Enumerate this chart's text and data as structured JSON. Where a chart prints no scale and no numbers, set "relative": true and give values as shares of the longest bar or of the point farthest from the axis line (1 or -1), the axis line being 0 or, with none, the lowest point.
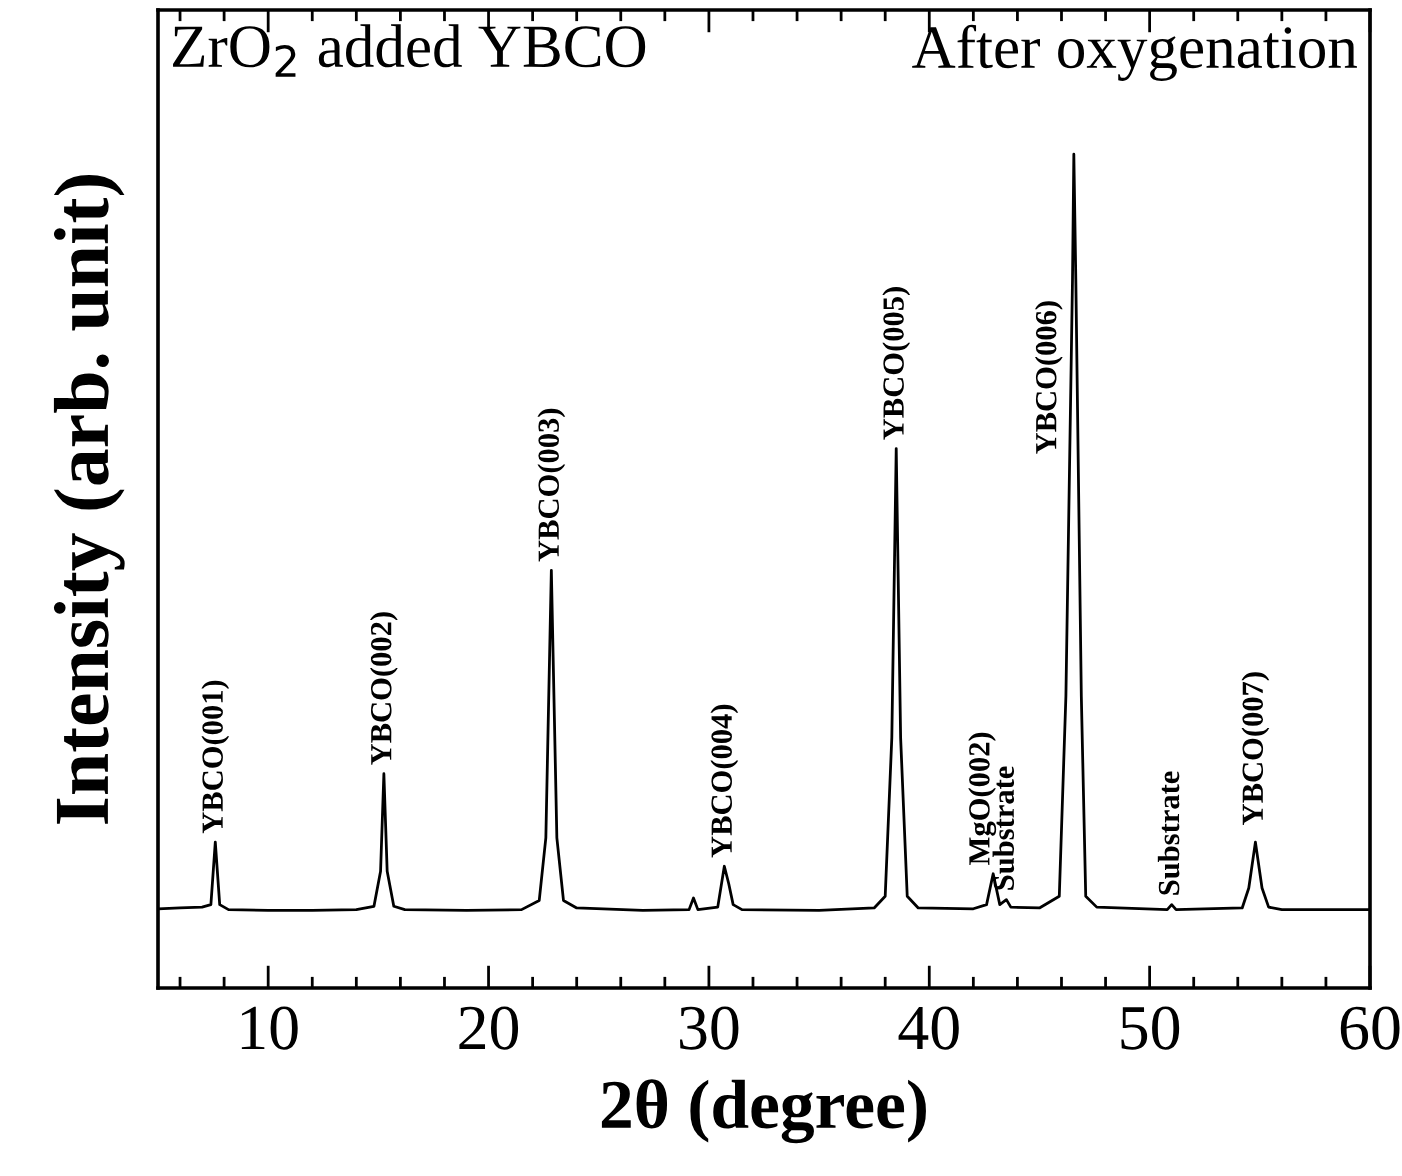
{
  "chart_data": {
    "type": "line",
    "relative": true,
    "xlabel": "2θ (degree)",
    "ylabel": "Intensity (arb. unit)",
    "xlim": [
      5,
      60
    ],
    "xticks": [
      10,
      20,
      30,
      40,
      50,
      60
    ],
    "tick_labels": "x",
    "grid": false,
    "legend": false,
    "marker": "none",
    "line_style": "solid",
    "series": [
      {
        "color": "#000000",
        "x": [
          5.0,
          6.0,
          7.0,
          7.4,
          7.6,
          7.8,
          8.2,
          10,
          12,
          14,
          14.8,
          15.1,
          15.25,
          15.4,
          15.7,
          16.2,
          19,
          21.5,
          22.3,
          22.6,
          22.85,
          23.1,
          23.4,
          24,
          27,
          29.1,
          29.3,
          29.5,
          30.4,
          30.7,
          30.9,
          31.1,
          31.5,
          35,
          37.5,
          38.0,
          38.3,
          38.5,
          38.7,
          39.0,
          39.5,
          42,
          42.6,
          42.9,
          43.2,
          43.5,
          43.7,
          45,
          45.9,
          46.2,
          46.5,
          46.56,
          46.65,
          46.9,
          47.1,
          47.6,
          50.8,
          51.0,
          51.2,
          54.2,
          54.5,
          54.8,
          55.1,
          55.4,
          56,
          60
        ],
        "values": [
          0.095,
          0.096,
          0.097,
          0.1,
          0.175,
          0.1,
          0.094,
          0.093,
          0.093,
          0.094,
          0.098,
          0.14,
          0.257,
          0.14,
          0.098,
          0.094,
          0.093,
          0.094,
          0.105,
          0.18,
          0.501,
          0.18,
          0.105,
          0.096,
          0.093,
          0.094,
          0.108,
          0.094,
          0.097,
          0.146,
          0.125,
          0.1,
          0.094,
          0.093,
          0.096,
          0.11,
          0.3,
          0.647,
          0.3,
          0.11,
          0.096,
          0.095,
          0.1,
          0.137,
          0.1,
          0.106,
          0.097,
          0.096,
          0.11,
          0.35,
          0.85,
          1.0,
          0.85,
          0.35,
          0.11,
          0.097,
          0.094,
          0.1,
          0.094,
          0.096,
          0.12,
          0.175,
          0.12,
          0.097,
          0.094,
          0.094
        ]
      }
    ],
    "annotations": [
      "ZrO$_{2}$ added YBCO",
      "After oxygenation",
      {
        "text": "YBCO(001)",
        "x": 7.6,
        "y": 0.175
      },
      {
        "text": "YBCO(002)",
        "x": 15.25,
        "y": 0.257
      },
      {
        "text": "YBCO(003)",
        "x": 22.85,
        "y": 0.501
      },
      {
        "text": "YBCO(004)",
        "x": 30.7,
        "y": 0.146
      },
      {
        "text": "YBCO(005)",
        "x": 38.5,
        "y": 0.647
      },
      {
        "text": "MgO(002)",
        "x": 42.4,
        "y": 0.137
      },
      {
        "text": "Substrate",
        "x": 43.5,
        "y": 0.106
      },
      {
        "text": "YBCO(006)",
        "x": 46.56,
        "y": 0.63
      },
      {
        "text": "Substrate",
        "x": 51.0,
        "y": 0.1
      },
      {
        "text": "YBCO(007)",
        "x": 54.8,
        "y": 0.185
      }
    ]
  }
}
